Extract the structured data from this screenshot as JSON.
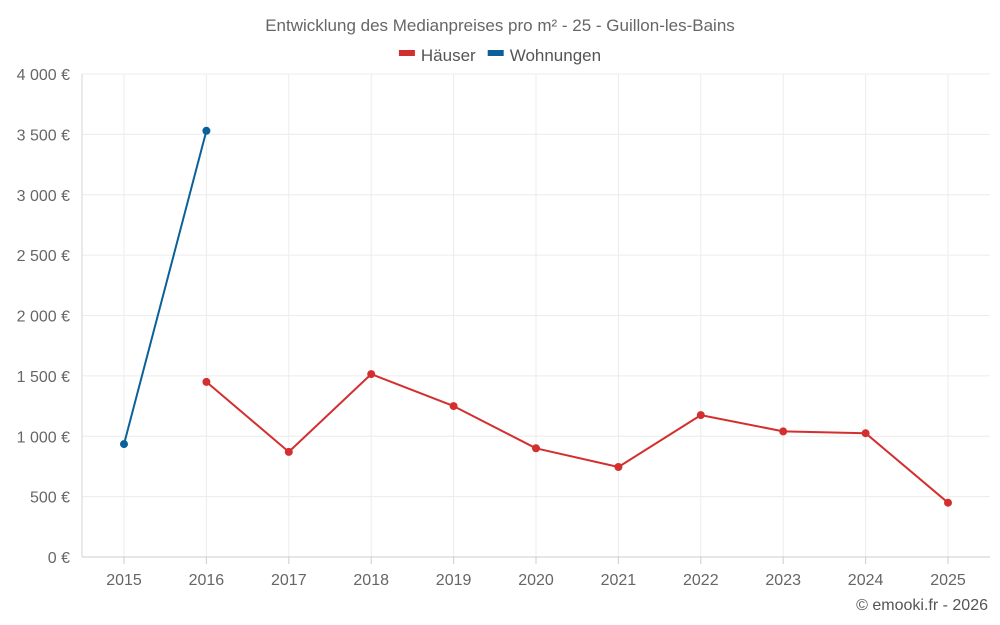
{
  "chart_data": {
    "type": "line",
    "title": "Entwicklung des Medianpreises pro m² - 25 - Guillon-les-Bains",
    "xlabel": "",
    "ylabel": "",
    "categories": [
      "2015",
      "2016",
      "2017",
      "2018",
      "2019",
      "2020",
      "2021",
      "2022",
      "2023",
      "2024",
      "2025"
    ],
    "ylim": [
      0,
      4000
    ],
    "yticks": [
      0,
      500,
      1000,
      1500,
      2000,
      2500,
      3000,
      3500,
      4000
    ],
    "ytick_labels": [
      "0 €",
      "500 €",
      "1 000 €",
      "1 500 €",
      "2 000 €",
      "2 500 €",
      "3 000 €",
      "3 500 €",
      "4 000 €"
    ],
    "grid": true,
    "legend_position": "top-center",
    "series": [
      {
        "name": "Häuser",
        "color": "#d32f2f",
        "values": [
          null,
          1450,
          870,
          1515,
          1250,
          900,
          745,
          1175,
          1040,
          1025,
          450
        ]
      },
      {
        "name": "Wohnungen",
        "color": "#0a6199",
        "values": [
          935,
          3530,
          null,
          null,
          null,
          null,
          null,
          null,
          null,
          null,
          null
        ]
      }
    ],
    "credit": "© emooki.fr - 2026"
  }
}
